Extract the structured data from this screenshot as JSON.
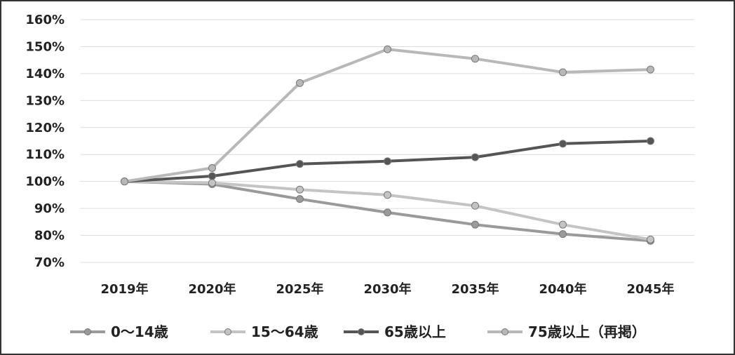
{
  "chart_data": {
    "type": "line",
    "title": "",
    "xlabel": "",
    "ylabel": "",
    "categories": [
      "2019年",
      "2020年",
      "2025年",
      "2030年",
      "2035年",
      "2040年",
      "2045年"
    ],
    "ylim": [
      70,
      160
    ],
    "yticks": [
      "70%",
      "80%",
      "90%",
      "100%",
      "110%",
      "120%",
      "130%",
      "140%",
      "150%",
      "160%"
    ],
    "grid": true,
    "legend_position": "bottom",
    "series": [
      {
        "name": "0～14歳",
        "values": [
          100,
          99,
          93.5,
          88.5,
          84,
          80.5,
          78
        ],
        "color": "#9a9a9a"
      },
      {
        "name": "15～64歳",
        "values": [
          100,
          99.5,
          97,
          95,
          91,
          84,
          78.5
        ],
        "color": "#c4c4c4"
      },
      {
        "name": "65歳以上",
        "values": [
          100,
          102,
          106.5,
          107.5,
          109,
          114,
          115
        ],
        "color": "#555555"
      },
      {
        "name": "75歳以上（再掲）",
        "values": [
          100,
          105,
          136.5,
          149,
          145.5,
          140.5,
          141.5
        ],
        "color": "#b8b8b8"
      }
    ]
  }
}
